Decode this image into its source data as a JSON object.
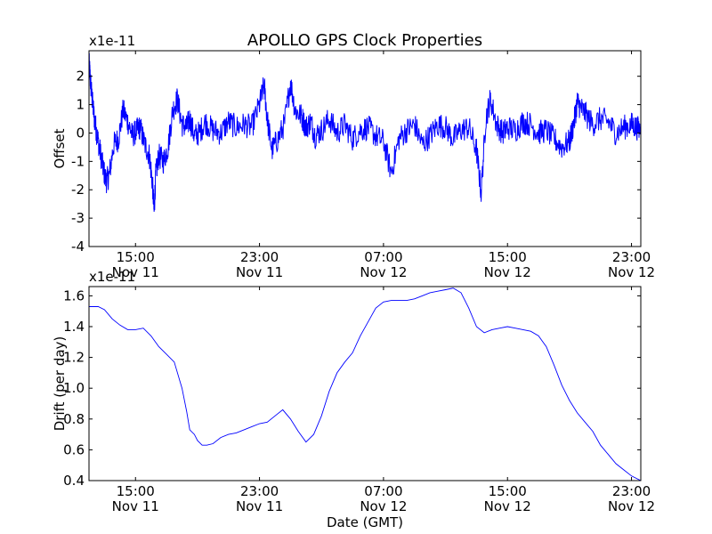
{
  "figure": {
    "title": "APOLLO GPS Clock Properties",
    "xlabel": "Date (GMT)"
  },
  "colors": {
    "line": "#0000ff",
    "axes": "#000000",
    "background": "#ffffff"
  },
  "x_ticks": [
    {
      "hours": 3,
      "time": "15:00",
      "date": "Nov 11"
    },
    {
      "hours": 11,
      "time": "23:00",
      "date": "Nov 11"
    },
    {
      "hours": 19,
      "time": "07:00",
      "date": "Nov 12"
    },
    {
      "hours": 27,
      "time": "15:00",
      "date": "Nov 12"
    },
    {
      "hours": 35,
      "time": "23:00",
      "date": "Nov 12"
    }
  ],
  "chart_data": [
    {
      "type": "line",
      "name": "offset",
      "ylabel": "Offset",
      "scale_label": "x1e-11",
      "xlim_hours": [
        0,
        35.6
      ],
      "ylim": [
        -4,
        2.9
      ],
      "yticks": [
        -4,
        -3,
        -2,
        -1,
        0,
        1,
        2
      ],
      "ytick_labels": [
        "-4",
        "-3",
        "-2",
        "-1",
        "0",
        "1",
        "2"
      ],
      "noisy": true,
      "series": [
        {
          "x": [
            0,
            0.1,
            0.2,
            0.35,
            0.5,
            0.7,
            0.9,
            1.1,
            1.3,
            1.6,
            1.9,
            2.2,
            2.5,
            2.8,
            3.1,
            3.3,
            3.6,
            3.9,
            4.1,
            4.2,
            4.3,
            4.5,
            4.8,
            5.1,
            5.4,
            5.7,
            6.0,
            6.3,
            6.5,
            6.8,
            7.1,
            7.5,
            8.0,
            8.5,
            9.0,
            9.5,
            10.0,
            10.5,
            11.0,
            11.3,
            11.5,
            11.8,
            12.2,
            12.6,
            13.0,
            13.3,
            13.7,
            14.0,
            14.3,
            14.6,
            15.0,
            15.5,
            16.0,
            16.5,
            17.0,
            17.5,
            18.0,
            18.5,
            19.0,
            19.5,
            20.0,
            20.5,
            21.0,
            21.5,
            22.0,
            22.5,
            23.0,
            23.5,
            24.0,
            24.5,
            25.0,
            25.3,
            25.6,
            25.9,
            26.3,
            26.7,
            27.0,
            27.5,
            28.0,
            28.5,
            29.0,
            29.5,
            30.0,
            30.5,
            31.0,
            31.3,
            31.5,
            31.7,
            32.0,
            32.5,
            33.0,
            33.5,
            34.0,
            34.5,
            35.0,
            35.3,
            35.6
          ],
          "y": [
            2.5,
            1.8,
            1.2,
            0.5,
            0.0,
            -0.6,
            -1.2,
            -1.7,
            -1.5,
            -0.4,
            -0.2,
            0.8,
            0.4,
            -0.1,
            0.1,
            0.2,
            -0.4,
            -0.8,
            -1.8,
            -2.8,
            -1.5,
            -0.8,
            -1.0,
            -0.5,
            0.8,
            1.2,
            0.3,
            0.2,
            0.5,
            -0.1,
            0.0,
            0.4,
            0.1,
            0.0,
            0.4,
            0.2,
            0.3,
            0.2,
            1.0,
            1.7,
            0.5,
            -0.6,
            -0.2,
            0.3,
            1.8,
            0.8,
            0.6,
            0.2,
            0.4,
            -0.1,
            0.1,
            0.5,
            0.0,
            0.3,
            -0.2,
            0.1,
            0.2,
            -0.1,
            -0.3,
            -1.4,
            -0.2,
            0.1,
            0.3,
            -0.4,
            -0.1,
            0.3,
            0.2,
            -0.2,
            0.1,
            0.2,
            -0.6,
            -2.1,
            0.5,
            1.2,
            0.3,
            0.0,
            0.2,
            0.1,
            0.4,
            0.3,
            0.0,
            0.1,
            -0.2,
            -0.5,
            -0.3,
            0.4,
            1.1,
            0.9,
            0.7,
            0.3,
            0.5,
            0.4,
            0.0,
            0.2,
            0.3,
            0.2,
            0.1
          ]
        }
      ]
    },
    {
      "type": "line",
      "name": "drift",
      "ylabel": "Drift (per day)",
      "scale_label": "x1e-11",
      "xlim_hours": [
        0,
        35.6
      ],
      "ylim": [
        0.4,
        1.66
      ],
      "yticks": [
        0.4,
        0.6,
        0.8,
        1.0,
        1.2,
        1.4,
        1.6
      ],
      "ytick_labels": [
        "0.4",
        "0.6",
        "0.8",
        "1.0",
        "1.2",
        "1.4",
        "1.6"
      ],
      "noisy": false,
      "series": [
        {
          "x": [
            0,
            0.6,
            1.0,
            1.5,
            2.0,
            2.5,
            3.0,
            3.5,
            4.0,
            4.5,
            5.0,
            5.5,
            6.0,
            6.3,
            6.5,
            6.8,
            7.0,
            7.3,
            7.6,
            8.0,
            8.5,
            9.0,
            9.5,
            10.0,
            10.5,
            11.0,
            11.5,
            12.0,
            12.5,
            13.0,
            13.5,
            14.0,
            14.5,
            15.0,
            15.5,
            16.0,
            16.5,
            17.0,
            17.5,
            18.0,
            18.5,
            19.0,
            19.5,
            20.0,
            20.5,
            21.0,
            21.5,
            22.0,
            22.5,
            23.0,
            23.5,
            24.0,
            24.5,
            25.0,
            25.5,
            26.0,
            26.5,
            27.0,
            27.5,
            28.0,
            28.5,
            29.0,
            29.5,
            30.0,
            30.5,
            31.0,
            31.5,
            32.0,
            32.5,
            33.0,
            33.5,
            34.0,
            34.5,
            35.0,
            35.6
          ],
          "y": [
            1.53,
            1.53,
            1.51,
            1.45,
            1.41,
            1.38,
            1.38,
            1.39,
            1.34,
            1.27,
            1.22,
            1.17,
            1.0,
            0.85,
            0.73,
            0.7,
            0.66,
            0.63,
            0.63,
            0.64,
            0.68,
            0.7,
            0.71,
            0.73,
            0.75,
            0.77,
            0.78,
            0.82,
            0.86,
            0.8,
            0.72,
            0.65,
            0.7,
            0.82,
            0.98,
            1.1,
            1.17,
            1.23,
            1.34,
            1.43,
            1.52,
            1.56,
            1.57,
            1.57,
            1.57,
            1.58,
            1.6,
            1.62,
            1.63,
            1.64,
            1.65,
            1.62,
            1.52,
            1.4,
            1.36,
            1.38,
            1.39,
            1.4,
            1.39,
            1.38,
            1.37,
            1.34,
            1.27,
            1.15,
            1.02,
            0.92,
            0.84,
            0.78,
            0.72,
            0.63,
            0.57,
            0.51,
            0.47,
            0.43,
            0.4
          ]
        }
      ]
    }
  ]
}
